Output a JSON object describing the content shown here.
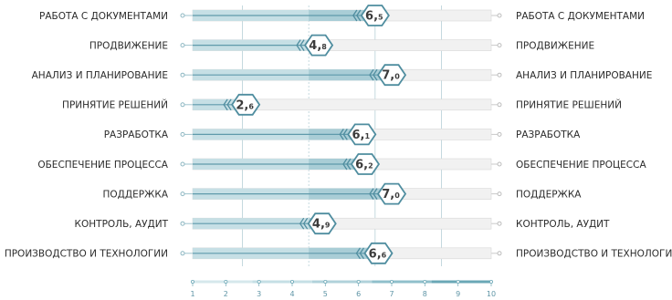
{
  "chart_data": {
    "type": "bar",
    "categories": [
      "РАБОТА С ДОКУМЕНТАМИ",
      "ПРОДВИЖЕНИЕ",
      "АНАЛИЗ И ПЛАНИРОВАНИЕ",
      "ПРИНЯТИЕ РЕШЕНИЙ",
      "РАЗРАБОТКА",
      "ОБЕСПЕЧЕНИЕ ПРОЦЕССА",
      "ПОДДЕРЖКА",
      "КОНТРОЛЬ, АУДИТ",
      "ПРОИЗВОДСТВО И ТЕХНОЛОГИИ"
    ],
    "values": [
      6.5,
      4.8,
      7.0,
      2.6,
      6.1,
      6.2,
      7.0,
      4.9,
      6.6
    ],
    "value_labels": [
      {
        "int": "6,",
        "dec": "5"
      },
      {
        "int": "4,",
        "dec": "8"
      },
      {
        "int": "7,",
        "dec": "0"
      },
      {
        "int": "2,",
        "dec": "6"
      },
      {
        "int": "6,",
        "dec": "1"
      },
      {
        "int": "6,",
        "dec": "2"
      },
      {
        "int": "7,",
        "dec": "0"
      },
      {
        "int": "4,",
        "dec": "9"
      },
      {
        "int": "6,",
        "dec": "6"
      }
    ],
    "x_ticks": [
      "1",
      "2",
      "3",
      "4",
      "5",
      "6",
      "7",
      "8",
      "9",
      "10"
    ],
    "xlim": [
      1,
      10
    ],
    "title": "",
    "xlabel": "",
    "ylabel": "",
    "colors": {
      "bar_fill": "#c6dfe5",
      "bar_dark": "#5f9aab",
      "track": "#f1f1f1",
      "track_border": "#d7d7d7",
      "badge_fill": "#ffffff",
      "badge_stroke": "#4f8d9f",
      "chevron": "#4f8d9f",
      "axis_segments": [
        "#d6e8ec",
        "#c5dfe5",
        "#b0d2da",
        "#8fbfcb",
        "#6aa7b6"
      ]
    }
  }
}
